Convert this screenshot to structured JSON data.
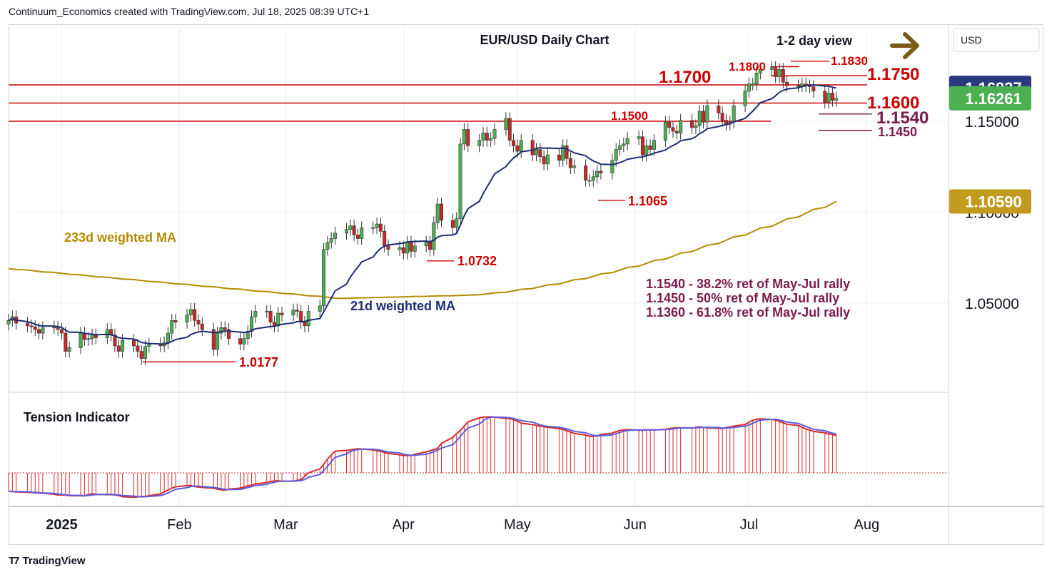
{
  "header": {
    "attribution": "Continuum_Economics created with TradingView.com, Jul 18, 2025 08:39 UTC+1"
  },
  "footer": {
    "brand": "TradingView"
  },
  "price_axis": {
    "currency": "USD",
    "ticks": [
      {
        "value": 1.15,
        "label": "1.15000"
      },
      {
        "value": 1.1,
        "label": "1.10000"
      },
      {
        "value": 1.05,
        "label": "1.05000"
      }
    ],
    "badges": [
      {
        "value": 1.16837,
        "label": "1.16837",
        "color": "#2a3a7c"
      },
      {
        "value": 1.16261,
        "label": "1.16261",
        "color": "#4caf50"
      },
      {
        "value": 1.1059,
        "label": "1.10590",
        "color": "#c29a1e"
      }
    ]
  },
  "time_axis": {
    "labels": [
      {
        "date": "2025-01-01",
        "label": "2025",
        "bold": true
      },
      {
        "date": "2025-02-01",
        "label": "Feb",
        "bold": false
      },
      {
        "date": "2025-03-01",
        "label": "Mar",
        "bold": false
      },
      {
        "date": "2025-04-01",
        "label": "Apr",
        "bold": false
      },
      {
        "date": "2025-05-01",
        "label": "May",
        "bold": false
      },
      {
        "date": "2025-06-01",
        "label": "Jun",
        "bold": false
      },
      {
        "date": "2025-07-01",
        "label": "Jul",
        "bold": false
      },
      {
        "date": "2025-08-01",
        "label": "Aug",
        "bold": false
      }
    ]
  },
  "chart_data": {
    "type": "candlestick",
    "title": "EUR/USD Daily Chart",
    "view_label": "1-2 day view",
    "view_direction": "right",
    "colors": {
      "up": "#4caf50",
      "down": "#c62828",
      "wick": "#333333",
      "ma21": "#1c2c74",
      "ma233": "#b38b00",
      "resistance": "#cc0000",
      "support": "#7a1a4a"
    },
    "closes": [
      1.0405,
      1.0425,
      1.039,
      1.0375,
      1.037,
      1.0355,
      1.0335,
      1.0365,
      1.0368,
      1.0355,
      1.0335,
      1.0235,
      1.0255,
      1.0335,
      1.03,
      1.0305,
      1.0325,
      1.031,
      1.0355,
      1.0325,
      1.0265,
      1.0235,
      1.0295,
      1.0265,
      1.0235,
      1.0195,
      1.0262,
      1.0275,
      1.0265,
      1.0282,
      1.0335,
      1.0405,
      1.0395,
      1.0435,
      1.0465,
      1.0405,
      1.0385,
      1.0355,
      1.0245,
      1.0335,
      1.0365,
      1.0355,
      1.0305,
      1.0275,
      1.0305,
      1.0345,
      1.0425,
      1.0455,
      1.0455,
      1.0395,
      1.0375,
      1.0445,
      1.0435,
      1.0462,
      1.0455,
      1.0395,
      1.0375,
      1.0455,
      1.0485,
      1.0795,
      1.0835,
      1.0855,
      1.0885,
      1.0905,
      1.0925,
      1.0875,
      1.0855,
      1.0915,
      1.0915,
      1.0935,
      1.0895,
      1.0815,
      1.0795,
      1.0805,
      1.0775,
      1.0835,
      1.0785,
      1.0815,
      1.0835,
      1.0795,
      1.0942,
      1.1045,
      1.0955,
      1.0915,
      1.0965,
      1.1375,
      1.1455,
      1.1365,
      1.1395,
      1.1435,
      1.1395,
      1.1405,
      1.1455,
      1.1515,
      1.1395,
      1.1365,
      1.1335,
      1.1395,
      1.1315,
      1.1345,
      1.1305,
      1.1265,
      1.1315,
      1.1285,
      1.1365,
      1.1295,
      1.1245,
      1.1255,
      1.1175,
      1.1175,
      1.1195,
      1.1225,
      1.1215,
      1.1285,
      1.1345,
      1.1365,
      1.1375,
      1.1405,
      1.1415,
      1.1315,
      1.1365,
      1.1345,
      1.1395,
      1.1495,
      1.1465,
      1.1445,
      1.1435,
      1.1505,
      1.1465,
      1.1475,
      1.1555,
      1.1495,
      1.1585,
      1.1545,
      1.1505,
      1.1485,
      1.1495,
      1.1585,
      1.1665,
      1.1705,
      1.1705,
      1.1765,
      1.1785,
      1.1795,
      1.1745,
      1.1785,
      1.1715,
      1.1695,
      1.1695,
      1.1705,
      1.1695,
      1.169,
      1.1665,
      1.1605,
      1.1655,
      1.1615,
      1.1626
    ],
    "annotations": [
      {
        "text": "1.1830",
        "value": 1.183
      },
      {
        "text": "1.1800",
        "value": 1.18
      },
      {
        "text": "1.1750",
        "value": 1.175
      },
      {
        "text": "1.1700",
        "value": 1.17
      },
      {
        "text": "1.1600",
        "value": 1.16
      },
      {
        "text": "1.1540",
        "value": 1.154
      },
      {
        "text": "1.1500",
        "value": 1.15
      },
      {
        "text": "1.1450",
        "value": 1.145
      },
      {
        "text": "1.1065",
        "value": 1.1065
      },
      {
        "text": "1.0732",
        "value": 1.0732
      },
      {
        "text": "1.0177",
        "value": 1.0177
      }
    ],
    "ma_labels": {
      "ma233": "233d weighted MA",
      "ma21": "21d weighted MA"
    },
    "notes": [
      "1.1540 - 38.2% ret of May-Jul rally",
      "1.1450 - 50% ret of May-Jul rally",
      "1.1360 - 61.8% ret of May-Jul rally"
    ],
    "indicator": {
      "title": "Tension Indicator",
      "line_color": "#d92b2b",
      "signal_color": "#5a5ee0"
    }
  }
}
